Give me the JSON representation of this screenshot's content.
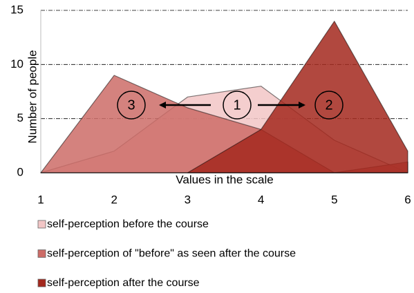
{
  "chart_data": {
    "type": "area",
    "x": [
      1,
      2,
      3,
      4,
      5,
      6
    ],
    "xlim": [
      1,
      6
    ],
    "xticks": [
      1,
      2,
      3,
      4,
      5,
      6
    ],
    "ylim": [
      0,
      15
    ],
    "yticks": [
      0,
      5,
      10,
      15
    ],
    "xlabel": "Values in the scale",
    "ylabel": "Number of people",
    "grid": true,
    "series": [
      {
        "name": "self-perception before the course",
        "color": "#f2c6c6",
        "values": [
          0,
          2,
          7,
          8,
          3,
          0
        ]
      },
      {
        "name": "self-perception of \"before\" as seen after the course",
        "color": "#cd6c67",
        "values": [
          0,
          9,
          6,
          4,
          0,
          1
        ]
      },
      {
        "name": "self-perception after the course",
        "color": "#a3281d",
        "values": [
          null,
          null,
          0,
          4,
          14,
          2
        ]
      }
    ],
    "annotations": [
      "3",
      "1",
      "2"
    ]
  }
}
